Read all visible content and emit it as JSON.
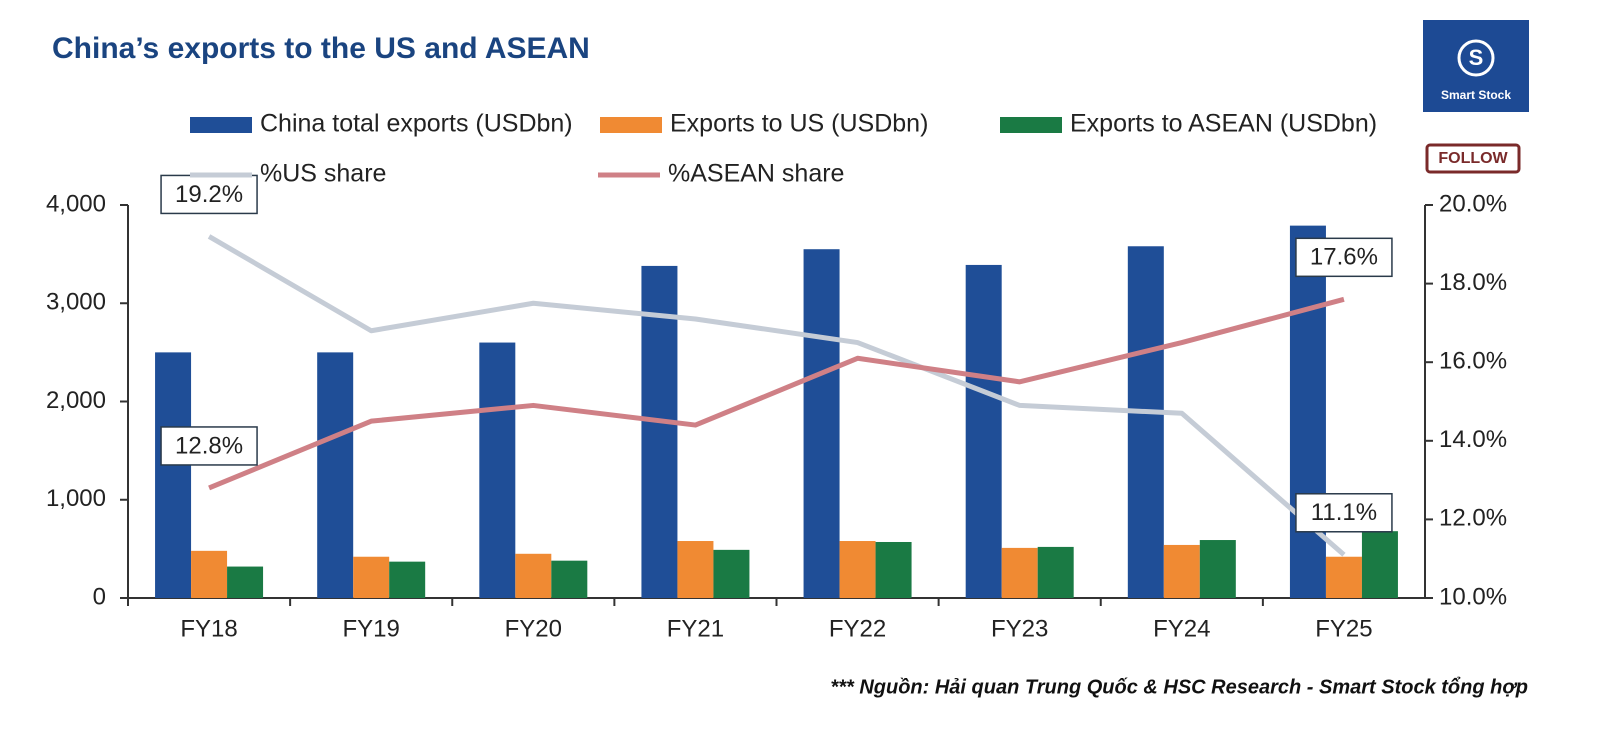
{
  "chart_data": {
    "type": "bar-line",
    "title": "China’s exports to the US and ASEAN",
    "categories": [
      "FY18",
      "FY19",
      "FY20",
      "FY21",
      "FY22",
      "FY23",
      "FY24",
      "FY25"
    ],
    "series": [
      {
        "name": "China total exports (USDbn)",
        "type": "bar",
        "color": "#1f4e97",
        "values": [
          2500,
          2500,
          2600,
          3380,
          3550,
          3390,
          3580,
          3790
        ]
      },
      {
        "name": "Exports to US (USDbn)",
        "type": "bar",
        "color": "#f08a33",
        "values": [
          480,
          420,
          450,
          580,
          580,
          510,
          540,
          420
        ]
      },
      {
        "name": "Exports to ASEAN (USDbn)",
        "type": "bar",
        "color": "#1a7a44",
        "values": [
          320,
          370,
          380,
          490,
          570,
          520,
          590,
          680
        ]
      },
      {
        "name": "%US share",
        "type": "line",
        "axis": "y2",
        "color": "#c5ccd6",
        "values": [
          19.2,
          16.8,
          17.5,
          17.1,
          16.5,
          14.9,
          14.7,
          11.1
        ],
        "value_labels": [
          "19.2%",
          null,
          null,
          null,
          null,
          null,
          null,
          "11.1%"
        ]
      },
      {
        "name": "%ASEAN share",
        "type": "line",
        "axis": "y2",
        "color": "#cf8086",
        "values": [
          12.8,
          14.5,
          14.9,
          14.4,
          16.1,
          15.5,
          16.5,
          17.6
        ],
        "value_labels": [
          "12.8%",
          null,
          null,
          null,
          null,
          null,
          null,
          "17.6%"
        ]
      }
    ],
    "ylim": [
      0,
      4000
    ],
    "yticks": [
      0,
      {
        "value": 1000,
        "label": "1,000"
      },
      {
        "value": 2000,
        "label": "2,000"
      },
      {
        "value": 3000,
        "label": "3,000"
      },
      {
        "value": 4000,
        "label": "4,000"
      }
    ],
    "y2lim": [
      10,
      20
    ],
    "y2ticks": [
      {
        "value": 10,
        "label": "10.0%"
      },
      {
        "value": 12,
        "label": "12.0%"
      },
      {
        "value": 14,
        "label": "14.0%"
      },
      {
        "value": 16,
        "label": "16.0%"
      },
      {
        "value": 18,
        "label": "18.0%"
      },
      {
        "value": 20,
        "label": "20.0%"
      }
    ],
    "legend": "top",
    "source": "*** Nguồn: Hải quan Trung Quốc & HSC Research - Smart Stock tổng hợp"
  },
  "brand": {
    "name": "Smart Stock",
    "follow": "FOLLOW"
  }
}
